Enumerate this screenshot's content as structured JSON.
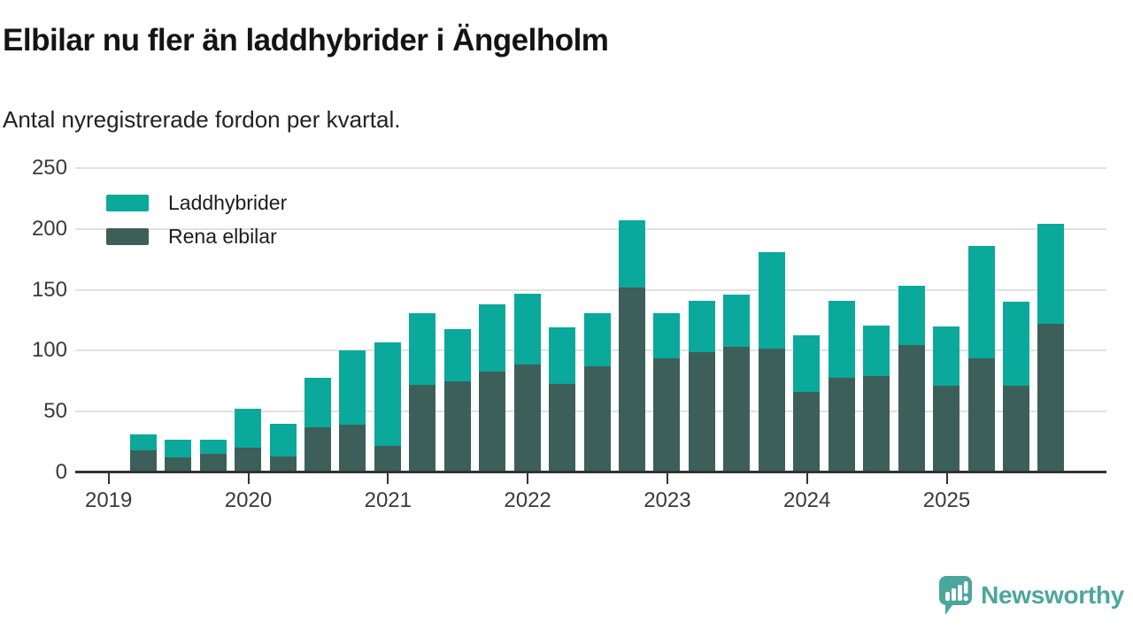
{
  "title": "Elbilar nu fler än laddhybrider i Ängelholm",
  "subtitle": "Antal nyregistrerade fordon per kvartal.",
  "colors": {
    "laddhybrider": "#0AA99C",
    "rena_elbilar": "#3D5F59",
    "gridline": "#E1E1E1",
    "axis": "#333333",
    "logo_teal": "#4BA69E"
  },
  "legend": {
    "items": [
      {
        "label": "Laddhybrider",
        "color_key": "laddhybrider"
      },
      {
        "label": "Rena elbilar",
        "color_key": "rena_elbilar"
      }
    ]
  },
  "y_axis": {
    "ticks": [
      0,
      50,
      100,
      150,
      200,
      250
    ]
  },
  "x_axis": {
    "ticks": [
      "2019",
      "2020",
      "2021",
      "2022",
      "2023",
      "2024",
      "2025"
    ]
  },
  "chart_data": {
    "type": "bar",
    "stacked": true,
    "title": "Elbilar nu fler än laddhybrider i Ängelholm",
    "subtitle": "Antal nyregistrerade fordon per kvartal.",
    "ylim": [
      0,
      250
    ],
    "grid": true,
    "legend_position": "top-left",
    "x": [
      "2019 Q2",
      "2019 Q3",
      "2019 Q4",
      "2020 Q1",
      "2020 Q2",
      "2020 Q3",
      "2020 Q4",
      "2021 Q1",
      "2021 Q2",
      "2021 Q3",
      "2021 Q4",
      "2022 Q1",
      "2022 Q2",
      "2022 Q3",
      "2022 Q4",
      "2023 Q1",
      "2023 Q2",
      "2023 Q3",
      "2023 Q4",
      "2024 Q1",
      "2024 Q2",
      "2024 Q3",
      "2024 Q4",
      "2025 Q1",
      "2025 Q2",
      "2025 Q3",
      "2025 Q4"
    ],
    "series": [
      {
        "name": "Rena elbilar",
        "values": [
          18,
          12,
          15,
          20,
          13,
          37,
          39,
          22,
          72,
          75,
          83,
          89,
          73,
          87,
          152,
          94,
          99,
          103,
          102,
          66,
          78,
          79,
          105,
          71,
          94,
          71,
          122
        ]
      },
      {
        "name": "Laddhybrider",
        "values": [
          13,
          15,
          12,
          32,
          27,
          41,
          61,
          85,
          59,
          43,
          55,
          58,
          46,
          44,
          55,
          37,
          42,
          43,
          79,
          47,
          63,
          42,
          48,
          49,
          92,
          69,
          82
        ]
      }
    ],
    "totals": [
      31,
      27,
      27,
      52,
      40,
      78,
      100,
      107,
      131,
      118,
      138,
      147,
      119,
      131,
      207,
      131,
      141,
      146,
      181,
      113,
      141,
      121,
      153,
      120,
      186,
      140,
      204
    ]
  },
  "logo": {
    "text": "Newsworthy"
  }
}
